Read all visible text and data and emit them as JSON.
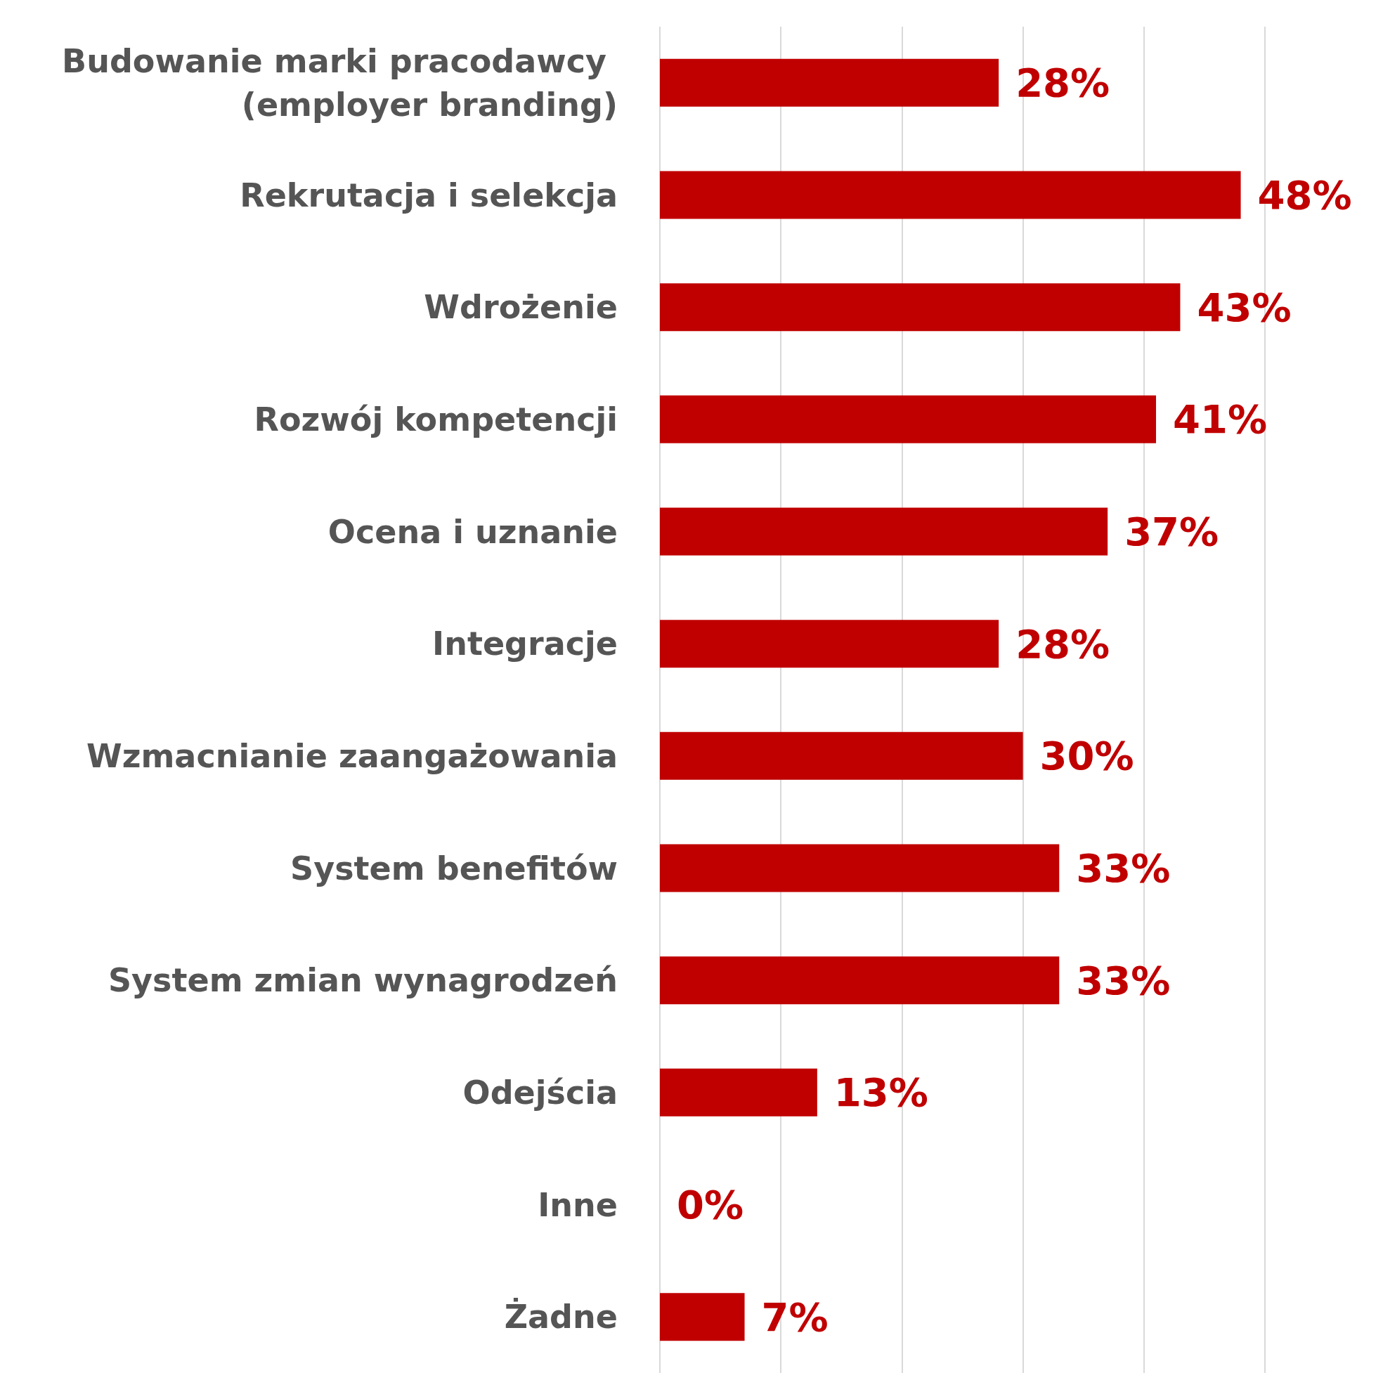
{
  "chart_data": {
    "type": "bar",
    "orientation": "horizontal",
    "categories": [
      "Budowanie marki pracodawcy (employer branding)",
      "Rekrutacja i selekcja",
      "Wdrożenie",
      "Rozwój kompetencji",
      "Ocena i uznanie",
      "Integracje",
      "Wzmacnianie zaangażowania",
      "System benefitów",
      "System zmian wynagrodzeń",
      "Odejścia",
      "Inne",
      "Żadne"
    ],
    "values": [
      28,
      48,
      43,
      41,
      37,
      28,
      30,
      33,
      33,
      13,
      0,
      7
    ],
    "value_labels": [
      "28%",
      "48%",
      "43%",
      "41%",
      "37%",
      "28%",
      "30%",
      "33%",
      "33%",
      "13%",
      "0%",
      "7%"
    ],
    "color": "#c00000",
    "xlim": [
      0,
      50
    ],
    "xticks": [
      {
        "value": 0,
        "label": null
      },
      {
        "value": 10,
        "label": null
      },
      {
        "value": 20,
        "label": null
      },
      {
        "value": 30,
        "label": null
      },
      {
        "value": 40,
        "label": null
      },
      {
        "value": 50,
        "label": null
      }
    ],
    "tick_labels": "y",
    "grid": "x"
  }
}
